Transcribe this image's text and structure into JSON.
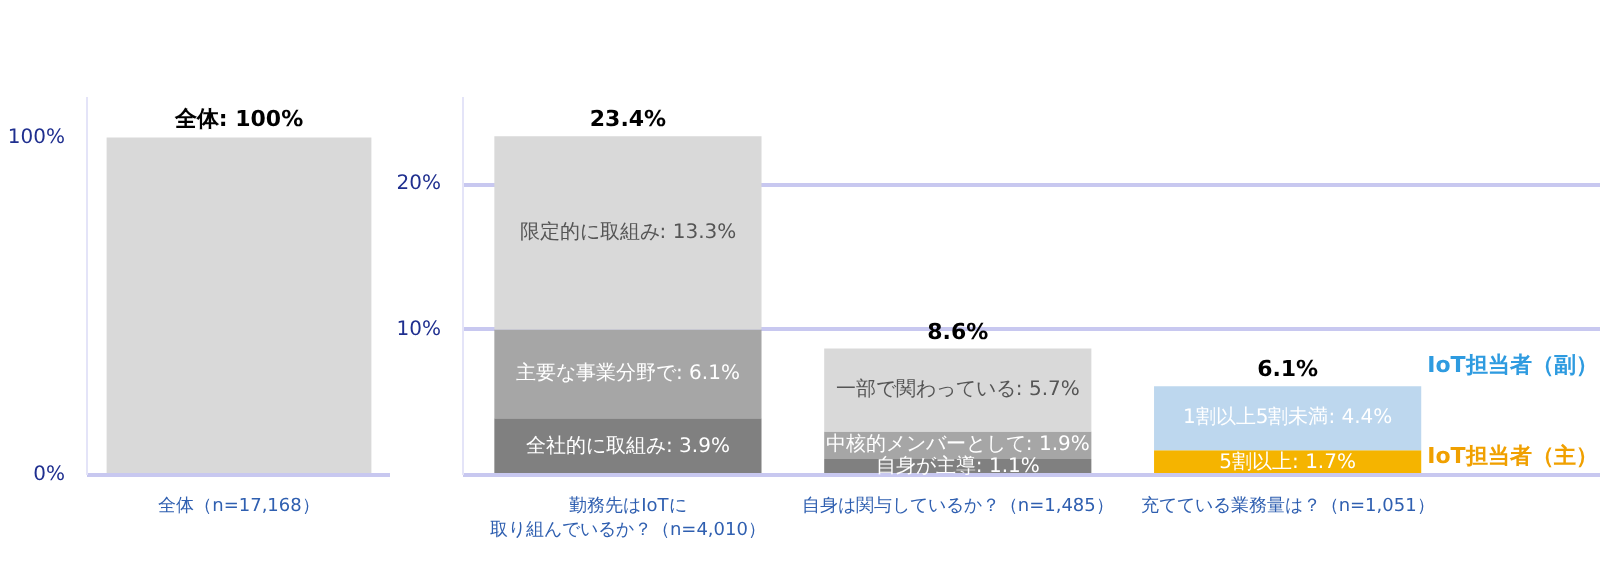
{
  "chart_data": [
    {
      "type": "bar",
      "categories": [
        "全体（n=17,168）"
      ],
      "ylim": [
        0,
        112
      ],
      "yticks": [
        {
          "value": 0,
          "label": "0%"
        },
        {
          "value": 100,
          "label": "100%"
        }
      ],
      "series": [
        {
          "values": [
            100
          ],
          "colors": [
            "#d9d9d9"
          ],
          "value_labels": [
            "全体: 100%"
          ]
        }
      ]
    },
    {
      "type": "bar",
      "stacked": true,
      "grid": "y",
      "categories": [
        "勤務先はIoTに取り組んでいるか？（n=4,010）",
        "自身は関与しているか？（n=1,485）",
        "充てている業務量は？（n=1,051）"
      ],
      "ylim": [
        0,
        26
      ],
      "yticks": [
        {
          "value": 0,
          "label": null
        },
        {
          "value": 10,
          "label": "10%"
        },
        {
          "value": 20,
          "label": "20%"
        }
      ],
      "series": [
        {
          "values": [
            3.9,
            1.1,
            1.7
          ],
          "colors": [
            "#808080",
            "#808080",
            "#f5b400"
          ],
          "value_labels": [
            "全社的に取組み: 3.9%",
            "自身が主導: 1.1%",
            "5割以上: 1.7%"
          ]
        },
        {
          "values": [
            6.1,
            1.9,
            4.4
          ],
          "colors": [
            "#a6a6a6",
            "#a6a6a6",
            "#bdd7ee"
          ],
          "value_labels": [
            "主要な事業分野で: 6.1%",
            "中核的メンバーとして: 1.9%",
            "1割以上5割未満: 4.4%"
          ]
        },
        {
          "values": [
            13.3,
            5.7,
            null
          ],
          "colors": [
            "#d9d9d9",
            "#d9d9d9",
            null
          ],
          "value_labels": [
            "限定的に取組み: 13.3%",
            "一部で関わっている: 5.7%",
            null
          ]
        }
      ],
      "totals": [
        "23.4%",
        "8.6%",
        "6.1%"
      ],
      "annotations": [
        "IoT担当者（副）",
        "IoT担当者（主）"
      ]
    }
  ]
}
